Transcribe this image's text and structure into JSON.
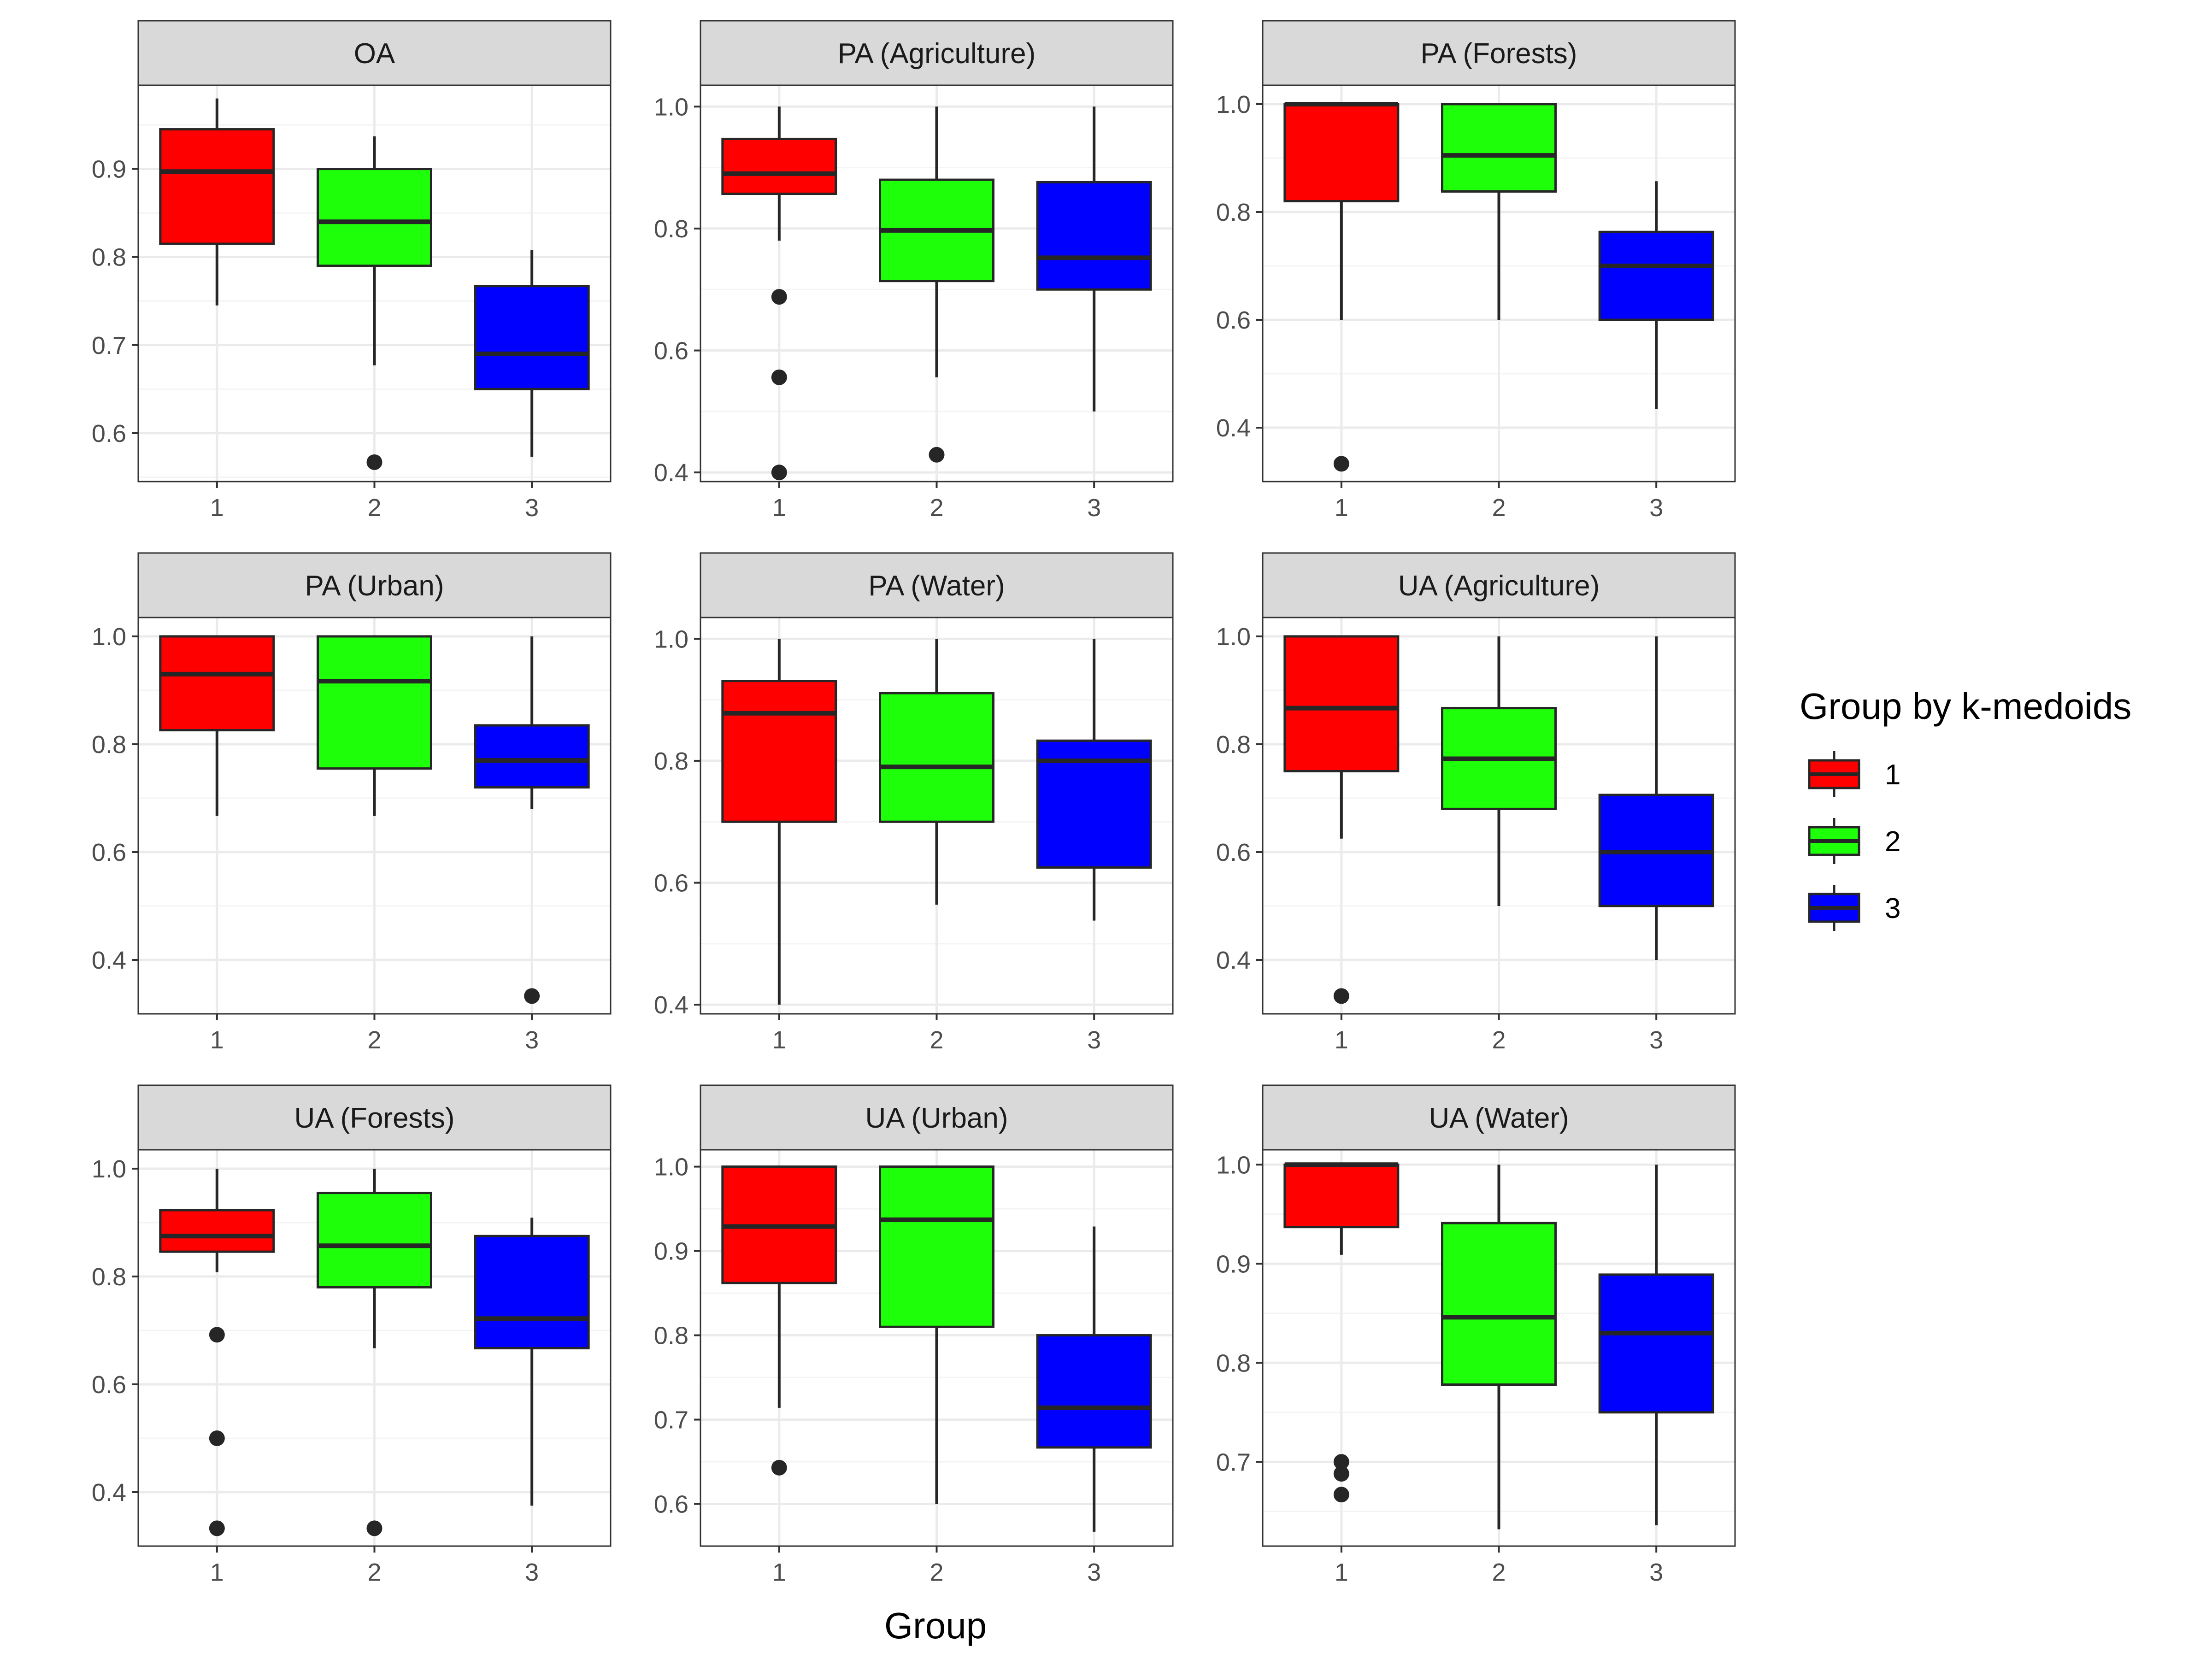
{
  "chart_data": {
    "type": "boxplot",
    "xlabel": "Group",
    "ylabel": "",
    "categories": [
      "1",
      "2",
      "3"
    ],
    "legend": {
      "title": "Group by k-medoids",
      "position": "right",
      "entries": [
        {
          "label": "1",
          "color": "#FF0000"
        },
        {
          "label": "2",
          "color": "#1EFF0A"
        },
        {
          "label": "3",
          "color": "#0000FF"
        }
      ]
    },
    "panels": [
      {
        "title": "OA",
        "ylim": [
          0.545,
          0.995
        ],
        "ticks": [
          0.6,
          0.7,
          0.8,
          0.9
        ],
        "tick_labels": [
          "0.6",
          "0.7",
          "0.8",
          "0.9"
        ],
        "boxes": [
          {
            "group": "1",
            "min": 0.745,
            "q1": 0.815,
            "median": 0.897,
            "q3": 0.945,
            "max": 0.98,
            "outliers": []
          },
          {
            "group": "2",
            "min": 0.677,
            "q1": 0.79,
            "median": 0.84,
            "q3": 0.9,
            "max": 0.937,
            "outliers": [
              0.567
            ]
          },
          {
            "group": "3",
            "min": 0.573,
            "q1": 0.65,
            "median": 0.69,
            "q3": 0.767,
            "max": 0.808,
            "outliers": []
          }
        ]
      },
      {
        "title": "PA (Agriculture)",
        "ylim": [
          0.385,
          1.035
        ],
        "ticks": [
          0.4,
          0.6,
          0.8,
          1.0
        ],
        "tick_labels": [
          "0.4",
          "0.6",
          "0.8",
          "1.0"
        ],
        "boxes": [
          {
            "group": "1",
            "min": 0.78,
            "q1": 0.857,
            "median": 0.89,
            "q3": 0.947,
            "max": 1.0,
            "outliers": [
              0.688,
              0.556,
              0.4
            ]
          },
          {
            "group": "2",
            "min": 0.556,
            "q1": 0.714,
            "median": 0.797,
            "q3": 0.88,
            "max": 1.0,
            "outliers": [
              0.429
            ]
          },
          {
            "group": "3",
            "min": 0.5,
            "q1": 0.7,
            "median": 0.752,
            "q3": 0.876,
            "max": 1.0,
            "outliers": []
          }
        ]
      },
      {
        "title": "PA (Forests)",
        "ylim": [
          0.3,
          1.035
        ],
        "ticks": [
          0.4,
          0.6,
          0.8,
          1.0
        ],
        "tick_labels": [
          "0.4",
          "0.6",
          "0.8",
          "1.0"
        ],
        "boxes": [
          {
            "group": "1",
            "min": 0.6,
            "q1": 0.82,
            "median": 1.0,
            "q3": 1.0,
            "max": 1.0,
            "outliers": [
              0.333
            ]
          },
          {
            "group": "2",
            "min": 0.6,
            "q1": 0.838,
            "median": 0.905,
            "q3": 1.0,
            "max": 1.0,
            "outliers": []
          },
          {
            "group": "3",
            "min": 0.435,
            "q1": 0.6,
            "median": 0.7,
            "q3": 0.763,
            "max": 0.857,
            "outliers": []
          }
        ]
      },
      {
        "title": "PA (Urban)",
        "ylim": [
          0.3,
          1.035
        ],
        "ticks": [
          0.4,
          0.6,
          0.8,
          1.0
        ],
        "tick_labels": [
          "0.4",
          "0.6",
          "0.8",
          "1.0"
        ],
        "boxes": [
          {
            "group": "1",
            "min": 0.667,
            "q1": 0.826,
            "median": 0.93,
            "q3": 1.0,
            "max": 1.0,
            "outliers": []
          },
          {
            "group": "2",
            "min": 0.667,
            "q1": 0.755,
            "median": 0.917,
            "q3": 1.0,
            "max": 1.0,
            "outliers": []
          },
          {
            "group": "3",
            "min": 0.68,
            "q1": 0.72,
            "median": 0.77,
            "q3": 0.835,
            "max": 1.0,
            "outliers": [
              0.333
            ]
          }
        ]
      },
      {
        "title": "PA (Water)",
        "ylim": [
          0.385,
          1.035
        ],
        "ticks": [
          0.4,
          0.6,
          0.8,
          1.0
        ],
        "tick_labels": [
          "0.4",
          "0.6",
          "0.8",
          "1.0"
        ],
        "boxes": [
          {
            "group": "1",
            "min": 0.4,
            "q1": 0.7,
            "median": 0.878,
            "q3": 0.931,
            "max": 1.0,
            "outliers": []
          },
          {
            "group": "2",
            "min": 0.564,
            "q1": 0.7,
            "median": 0.79,
            "q3": 0.911,
            "max": 1.0,
            "outliers": []
          },
          {
            "group": "3",
            "min": 0.538,
            "q1": 0.625,
            "median": 0.8,
            "q3": 0.833,
            "max": 1.0,
            "outliers": []
          }
        ]
      },
      {
        "title": "UA (Agriculture)",
        "ylim": [
          0.3,
          1.035
        ],
        "ticks": [
          0.4,
          0.6,
          0.8,
          1.0
        ],
        "tick_labels": [
          "0.4",
          "0.6",
          "0.8",
          "1.0"
        ],
        "boxes": [
          {
            "group": "1",
            "min": 0.625,
            "q1": 0.75,
            "median": 0.867,
            "q3": 1.0,
            "max": 1.0,
            "outliers": [
              0.333
            ]
          },
          {
            "group": "2",
            "min": 0.5,
            "q1": 0.68,
            "median": 0.773,
            "q3": 0.867,
            "max": 1.0,
            "outliers": []
          },
          {
            "group": "3",
            "min": 0.4,
            "q1": 0.5,
            "median": 0.6,
            "q3": 0.706,
            "max": 1.0,
            "outliers": []
          }
        ]
      },
      {
        "title": "UA (Forests)",
        "ylim": [
          0.3,
          1.035
        ],
        "ticks": [
          0.4,
          0.6,
          0.8,
          1.0
        ],
        "tick_labels": [
          "0.4",
          "0.6",
          "0.8",
          "1.0"
        ],
        "boxes": [
          {
            "group": "1",
            "min": 0.808,
            "q1": 0.846,
            "median": 0.875,
            "q3": 0.923,
            "max": 1.0,
            "outliers": [
              0.692,
              0.5,
              0.333
            ]
          },
          {
            "group": "2",
            "min": 0.667,
            "q1": 0.78,
            "median": 0.857,
            "q3": 0.955,
            "max": 1.0,
            "outliers": [
              0.333
            ]
          },
          {
            "group": "3",
            "min": 0.375,
            "q1": 0.667,
            "median": 0.722,
            "q3": 0.875,
            "max": 0.909,
            "outliers": []
          }
        ]
      },
      {
        "title": "UA (Urban)",
        "ylim": [
          0.55,
          1.02
        ],
        "ticks": [
          0.6,
          0.7,
          0.8,
          0.9,
          1.0
        ],
        "tick_labels": [
          "0.6",
          "0.7",
          "0.8",
          "0.9",
          "1.0"
        ],
        "boxes": [
          {
            "group": "1",
            "min": 0.714,
            "q1": 0.862,
            "median": 0.929,
            "q3": 1.0,
            "max": 1.0,
            "outliers": [
              0.643
            ]
          },
          {
            "group": "2",
            "min": 0.6,
            "q1": 0.81,
            "median": 0.937,
            "q3": 1.0,
            "max": 1.0,
            "outliers": []
          },
          {
            "group": "3",
            "min": 0.567,
            "q1": 0.667,
            "median": 0.714,
            "q3": 0.8,
            "max": 0.929,
            "outliers": []
          }
        ]
      },
      {
        "title": "UA (Water)",
        "ylim": [
          0.615,
          1.015
        ],
        "ticks": [
          0.7,
          0.8,
          0.9,
          1.0
        ],
        "tick_labels": [
          "0.7",
          "0.8",
          "0.9",
          "1.0"
        ],
        "boxes": [
          {
            "group": "1",
            "min": 0.909,
            "q1": 0.937,
            "median": 1.0,
            "q3": 1.0,
            "max": 1.0,
            "outliers": [
              0.7,
              0.688,
              0.667
            ]
          },
          {
            "group": "2",
            "min": 0.632,
            "q1": 0.778,
            "median": 0.846,
            "q3": 0.941,
            "max": 1.0,
            "outliers": []
          },
          {
            "group": "3",
            "min": 0.636,
            "q1": 0.75,
            "median": 0.83,
            "q3": 0.889,
            "max": 1.0,
            "outliers": []
          }
        ]
      }
    ]
  }
}
